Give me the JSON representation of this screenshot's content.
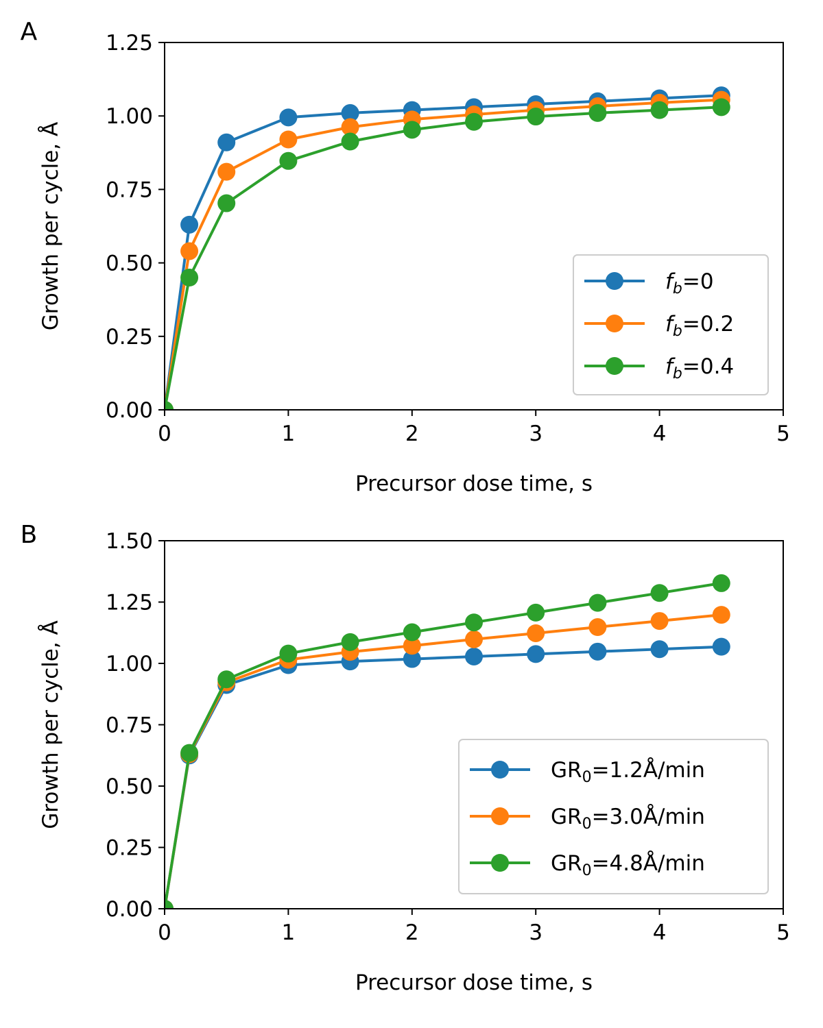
{
  "chart_data": [
    {
      "type": "line",
      "panel_label": "A",
      "xlabel": "Precursor dose time, s",
      "ylabel": "Growth per cycle, Å",
      "xlim": [
        0,
        5
      ],
      "ylim": [
        0,
        1.25
      ],
      "xticks": [
        0,
        1,
        2,
        3,
        4,
        5
      ],
      "xtick_labels": [
        "0",
        "1",
        "2",
        "3",
        "4",
        "5"
      ],
      "yticks": [
        0,
        0.25,
        0.5,
        0.75,
        1.0,
        1.25
      ],
      "ytick_labels": [
        "0.00",
        "0.25",
        "0.50",
        "0.75",
        "1.00",
        "1.25"
      ],
      "x": [
        0,
        0.2,
        0.5,
        1.0,
        1.5,
        2.0,
        2.5,
        3.0,
        3.5,
        4.0,
        4.5
      ],
      "legend_position": "lower right",
      "series": [
        {
          "name": "f_b=0",
          "label_base": "f",
          "label_sub": "b",
          "label_suffix": "=0",
          "color": "#1f77b4",
          "values": [
            0,
            0.63,
            0.91,
            0.995,
            1.01,
            1.02,
            1.03,
            1.04,
            1.05,
            1.06,
            1.07
          ]
        },
        {
          "name": "f_b=0.2",
          "label_base": "f",
          "label_sub": "b",
          "label_suffix": "=0.2",
          "color": "#ff7f0e",
          "values": [
            0,
            0.54,
            0.81,
            0.92,
            0.962,
            0.988,
            1.005,
            1.02,
            1.033,
            1.045,
            1.055
          ]
        },
        {
          "name": "f_b=0.4",
          "label_base": "f",
          "label_sub": "b",
          "label_suffix": "=0.4",
          "color": "#2ca02c",
          "values": [
            0,
            0.45,
            0.703,
            0.847,
            0.913,
            0.953,
            0.98,
            0.998,
            1.01,
            1.02,
            1.03
          ]
        }
      ]
    },
    {
      "type": "line",
      "panel_label": "B",
      "xlabel": "Precursor dose time, s",
      "ylabel": "Growth per cycle, Å",
      "xlim": [
        0,
        5
      ],
      "ylim": [
        0,
        1.5
      ],
      "xticks": [
        0,
        1,
        2,
        3,
        4,
        5
      ],
      "xtick_labels": [
        "0",
        "1",
        "2",
        "3",
        "4",
        "5"
      ],
      "yticks": [
        0,
        0.25,
        0.5,
        0.75,
        1.0,
        1.25,
        1.5
      ],
      "ytick_labels": [
        "0.00",
        "0.25",
        "0.50",
        "0.75",
        "1.00",
        "1.25",
        "1.50"
      ],
      "x": [
        0,
        0.2,
        0.5,
        1.0,
        1.5,
        2.0,
        2.5,
        3.0,
        3.5,
        4.0,
        4.5
      ],
      "legend_position": "lower right",
      "series": [
        {
          "name": "GR_0=1.2Å/min",
          "label_base": "GR",
          "label_sub": "0",
          "label_suffix": "=1.2Å/min",
          "color": "#1f77b4",
          "values": [
            0,
            0.625,
            0.912,
            0.993,
            1.008,
            1.018,
            1.028,
            1.038,
            1.048,
            1.058,
            1.068
          ]
        },
        {
          "name": "GR_0=3.0Å/min",
          "label_base": "GR",
          "label_sub": "0",
          "label_suffix": "=3.0Å/min",
          "color": "#ff7f0e",
          "values": [
            0,
            0.63,
            0.923,
            1.015,
            1.047,
            1.072,
            1.098,
            1.123,
            1.148,
            1.173,
            1.198
          ]
        },
        {
          "name": "GR_0=4.8Å/min",
          "label_base": "GR",
          "label_sub": "0",
          "label_suffix": "=4.8Å/min",
          "color": "#2ca02c",
          "values": [
            0,
            0.635,
            0.935,
            1.04,
            1.087,
            1.127,
            1.167,
            1.207,
            1.247,
            1.287,
            1.327
          ]
        }
      ]
    }
  ]
}
